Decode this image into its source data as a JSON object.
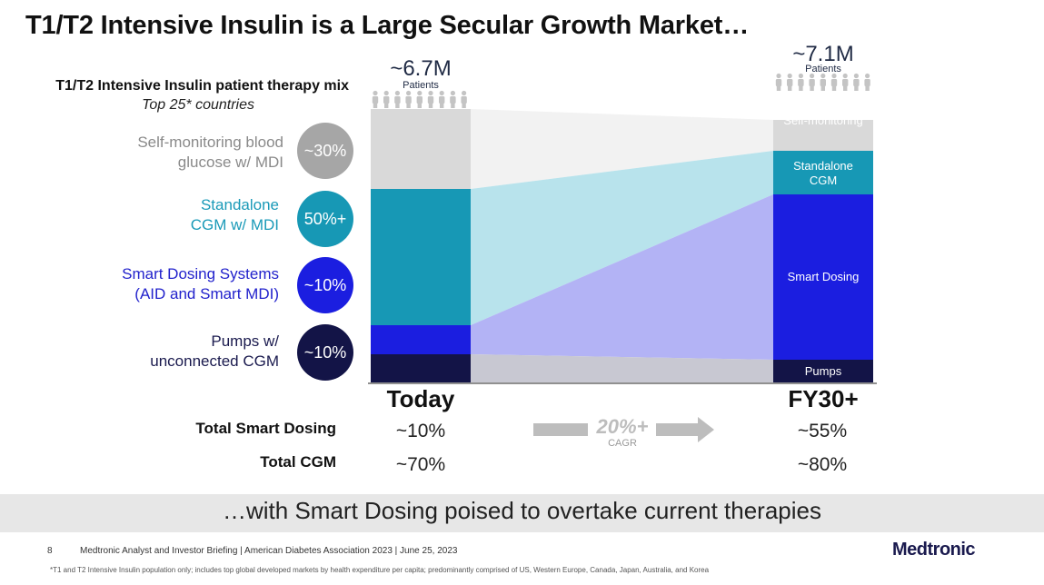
{
  "title": "T1/T2 Intensive Insulin is a Large Secular Growth Market…",
  "mix": {
    "title": "T1/T2 Intensive Insulin patient therapy mix",
    "subtitle": "Top 25* countries"
  },
  "categories": [
    {
      "label_line1": "Self-monitoring blood",
      "label_line2": "glucose w/ MDI",
      "pct": "~30%",
      "color": "#a6a6a6",
      "label_color": "#8a8a8a"
    },
    {
      "label_line1": "Standalone",
      "label_line2": "CGM w/ MDI",
      "pct": "50%+",
      "color": "#1798b5",
      "label_color": "#1a9ab8"
    },
    {
      "label_line1": "Smart Dosing Systems",
      "label_line2": "(AID and Smart MDI)",
      "pct": "~10%",
      "color": "#1b1ee0",
      "label_color": "#2222cc"
    },
    {
      "label_line1": "Pumps w/",
      "label_line2": "unconnected CGM",
      "pct": "~10%",
      "color": "#131447",
      "label_color": "#1a1a4e"
    }
  ],
  "today": {
    "patients_value": "~6.7M",
    "patients_label": "Patients",
    "heading": "Today",
    "total_smart_dosing": "~10%",
    "total_cgm": "~70%"
  },
  "fy30": {
    "patients_value": "~7.1M",
    "patients_label": "Patients",
    "heading": "FY30+",
    "total_smart_dosing": "~55%",
    "total_cgm": "~80%",
    "segments": {
      "self_monitoring": "Self-monitoring",
      "standalone_l1": "Standalone",
      "standalone_l2": "CGM",
      "smart_dosing": "Smart Dosing",
      "pumps": "Pumps"
    }
  },
  "rows": {
    "total_smart_dosing_label": "Total Smart Dosing",
    "total_cgm_label": "Total CGM"
  },
  "cagr": {
    "value": "20%+",
    "label": "CAGR"
  },
  "banner": "…with Smart Dosing poised to overtake current therapies",
  "footer": {
    "page": "8",
    "text": "Medtronic Analyst and Investor Briefing | American Diabetes Association 2023 | June 25, 2023",
    "footnote": "*T1 and T2 Intensive Insulin population only; includes top global developed markets by health expenditure per capita; predominantly comprised of US, Western Europe, Canada, Japan, Australia, and Korea",
    "logo": "Medtronic"
  },
  "icons": {
    "person": "person-icon",
    "arrow": "arrow-right-icon"
  }
}
